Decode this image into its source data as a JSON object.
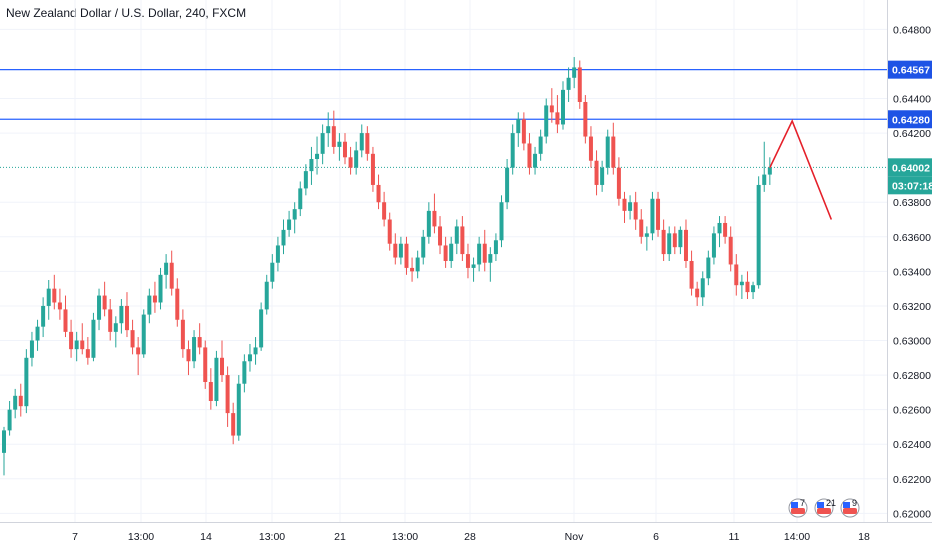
{
  "header": {
    "title": "New Zealand Dollar / U.S. Dollar, 240, FXCM"
  },
  "colors": {
    "up": "#26a69a",
    "down": "#ef5350",
    "level": "#2962ff",
    "level_tag": "#1e53e5",
    "price_tag": "#26a69a",
    "projection": "#e5202a",
    "grid": "#f0f3fa",
    "axis_text": "#131722"
  },
  "chart_data": {
    "type": "candlestick",
    "symbol": "NZDUSD",
    "ylim": [
      0.6195,
      0.6497
    ],
    "y_ticks": [
      "0.64800",
      "0.64400",
      "0.64200",
      "0.63800",
      "0.63600",
      "0.63400",
      "0.63200",
      "0.63000",
      "0.62800",
      "0.62600",
      "0.62400",
      "0.62200",
      "0.62000"
    ],
    "x_ticks": [
      "7",
      "13:00",
      "14",
      "13:00",
      "21",
      "13:00",
      "28",
      "Nov",
      "6",
      "11",
      "14:00",
      "18"
    ],
    "levels": [
      {
        "label": "0.64567",
        "value": 0.64567
      },
      {
        "label": "0.64280",
        "value": 0.6428
      }
    ],
    "current_price": {
      "label": "0.64002",
      "value": 0.64002
    },
    "countdown": "03:07:18",
    "projection": [
      {
        "bar": 0,
        "price": 0.64
      },
      {
        "bar": 4,
        "price": 0.6427
      },
      {
        "bar": 11,
        "price": 0.637
      }
    ],
    "event_icons": [
      "7",
      "21",
      "9"
    ],
    "candles": [
      [
        0.6235,
        0.625,
        0.6222,
        0.6248
      ],
      [
        0.6248,
        0.6265,
        0.6245,
        0.626
      ],
      [
        0.626,
        0.6272,
        0.6255,
        0.6268
      ],
      [
        0.6268,
        0.6275,
        0.6256,
        0.6262
      ],
      [
        0.6262,
        0.6295,
        0.6258,
        0.629
      ],
      [
        0.629,
        0.6305,
        0.6285,
        0.63
      ],
      [
        0.63,
        0.6312,
        0.6294,
        0.6308
      ],
      [
        0.6308,
        0.6325,
        0.6302,
        0.632
      ],
      [
        0.632,
        0.6335,
        0.6312,
        0.633
      ],
      [
        0.633,
        0.6338,
        0.6318,
        0.6322
      ],
      [
        0.6322,
        0.633,
        0.6312,
        0.6318
      ],
      [
        0.6318,
        0.6326,
        0.6302,
        0.6305
      ],
      [
        0.6305,
        0.6312,
        0.629,
        0.6295
      ],
      [
        0.6295,
        0.6305,
        0.6288,
        0.63
      ],
      [
        0.63,
        0.631,
        0.6292,
        0.6295
      ],
      [
        0.6295,
        0.6302,
        0.6286,
        0.629
      ],
      [
        0.629,
        0.6316,
        0.6288,
        0.6312
      ],
      [
        0.6312,
        0.633,
        0.6306,
        0.6326
      ],
      [
        0.6326,
        0.6334,
        0.6314,
        0.6318
      ],
      [
        0.6318,
        0.6324,
        0.63,
        0.6305
      ],
      [
        0.6305,
        0.6314,
        0.6296,
        0.631
      ],
      [
        0.631,
        0.6324,
        0.6304,
        0.632
      ],
      [
        0.632,
        0.6328,
        0.6302,
        0.6306
      ],
      [
        0.6306,
        0.6312,
        0.6292,
        0.6296
      ],
      [
        0.6296,
        0.6302,
        0.628,
        0.6292
      ],
      [
        0.6292,
        0.6318,
        0.629,
        0.6315
      ],
      [
        0.6315,
        0.633,
        0.631,
        0.6326
      ],
      [
        0.6326,
        0.6334,
        0.6316,
        0.6322
      ],
      [
        0.6322,
        0.6342,
        0.6318,
        0.6338
      ],
      [
        0.6338,
        0.635,
        0.633,
        0.6345
      ],
      [
        0.6345,
        0.6352,
        0.6326,
        0.633
      ],
      [
        0.633,
        0.6336,
        0.6308,
        0.6312
      ],
      [
        0.6312,
        0.6318,
        0.629,
        0.6295
      ],
      [
        0.6295,
        0.63,
        0.628,
        0.6288
      ],
      [
        0.6288,
        0.6306,
        0.6284,
        0.6302
      ],
      [
        0.6302,
        0.631,
        0.6292,
        0.6296
      ],
      [
        0.6296,
        0.63,
        0.6272,
        0.6276
      ],
      [
        0.6276,
        0.6284,
        0.626,
        0.6265
      ],
      [
        0.6265,
        0.6294,
        0.6262,
        0.629
      ],
      [
        0.629,
        0.63,
        0.6276,
        0.628
      ],
      [
        0.628,
        0.6285,
        0.625,
        0.6258
      ],
      [
        0.6258,
        0.6264,
        0.624,
        0.6245
      ],
      [
        0.6245,
        0.628,
        0.6242,
        0.6275
      ],
      [
        0.6275,
        0.6292,
        0.627,
        0.6288
      ],
      [
        0.6288,
        0.6298,
        0.6282,
        0.6292
      ],
      [
        0.6292,
        0.6302,
        0.6286,
        0.6296
      ],
      [
        0.6296,
        0.6322,
        0.6294,
        0.6318
      ],
      [
        0.6318,
        0.6338,
        0.6315,
        0.6334
      ],
      [
        0.6334,
        0.635,
        0.633,
        0.6345
      ],
      [
        0.6345,
        0.636,
        0.634,
        0.6355
      ],
      [
        0.6355,
        0.637,
        0.635,
        0.6364
      ],
      [
        0.6364,
        0.6375,
        0.636,
        0.637
      ],
      [
        0.637,
        0.638,
        0.6362,
        0.6376
      ],
      [
        0.6376,
        0.6392,
        0.6372,
        0.6388
      ],
      [
        0.6388,
        0.6402,
        0.6384,
        0.6398
      ],
      [
        0.6398,
        0.6412,
        0.639,
        0.6405
      ],
      [
        0.6405,
        0.6418,
        0.6396,
        0.6408
      ],
      [
        0.6408,
        0.6425,
        0.6402,
        0.642
      ],
      [
        0.642,
        0.6432,
        0.6412,
        0.6424
      ],
      [
        0.6424,
        0.6433,
        0.6408,
        0.6412
      ],
      [
        0.6412,
        0.642,
        0.6404,
        0.6415
      ],
      [
        0.6415,
        0.642,
        0.6402,
        0.6406
      ],
      [
        0.6406,
        0.6412,
        0.6396,
        0.64
      ],
      [
        0.64,
        0.6415,
        0.6396,
        0.641
      ],
      [
        0.641,
        0.6425,
        0.6406,
        0.642
      ],
      [
        0.642,
        0.6424,
        0.6404,
        0.6408
      ],
      [
        0.6408,
        0.6412,
        0.6386,
        0.639
      ],
      [
        0.639,
        0.6396,
        0.6376,
        0.638
      ],
      [
        0.638,
        0.6386,
        0.6366,
        0.637
      ],
      [
        0.637,
        0.6374,
        0.6352,
        0.6356
      ],
      [
        0.6356,
        0.6362,
        0.6344,
        0.6348
      ],
      [
        0.6348,
        0.636,
        0.6344,
        0.6356
      ],
      [
        0.6356,
        0.636,
        0.6338,
        0.6342
      ],
      [
        0.6342,
        0.6348,
        0.6334,
        0.634
      ],
      [
        0.634,
        0.6352,
        0.6336,
        0.6348
      ],
      [
        0.6348,
        0.6364,
        0.6344,
        0.636
      ],
      [
        0.636,
        0.638,
        0.6356,
        0.6375
      ],
      [
        0.6375,
        0.6385,
        0.6362,
        0.6366
      ],
      [
        0.6366,
        0.6372,
        0.635,
        0.6355
      ],
      [
        0.6355,
        0.636,
        0.6342,
        0.6346
      ],
      [
        0.6346,
        0.636,
        0.6342,
        0.6356
      ],
      [
        0.6356,
        0.637,
        0.635,
        0.6366
      ],
      [
        0.6366,
        0.6372,
        0.6346,
        0.635
      ],
      [
        0.635,
        0.6356,
        0.6336,
        0.6342
      ],
      [
        0.6342,
        0.6348,
        0.6334,
        0.6344
      ],
      [
        0.6344,
        0.636,
        0.634,
        0.6356
      ],
      [
        0.6356,
        0.6364,
        0.634,
        0.6345
      ],
      [
        0.6345,
        0.6354,
        0.6334,
        0.635
      ],
      [
        0.635,
        0.6362,
        0.6346,
        0.6358
      ],
      [
        0.6358,
        0.6384,
        0.6354,
        0.638
      ],
      [
        0.638,
        0.6405,
        0.6376,
        0.64
      ],
      [
        0.64,
        0.6425,
        0.6396,
        0.642
      ],
      [
        0.642,
        0.6432,
        0.6412,
        0.6428
      ],
      [
        0.6428,
        0.6432,
        0.641,
        0.6414
      ],
      [
        0.6414,
        0.642,
        0.6396,
        0.64
      ],
      [
        0.64,
        0.6412,
        0.6396,
        0.6408
      ],
      [
        0.6408,
        0.6422,
        0.6404,
        0.6418
      ],
      [
        0.6418,
        0.644,
        0.6414,
        0.6436
      ],
      [
        0.6436,
        0.6446,
        0.6426,
        0.6432
      ],
      [
        0.6432,
        0.6442,
        0.642,
        0.6425
      ],
      [
        0.6425,
        0.645,
        0.6422,
        0.6445
      ],
      [
        0.6445,
        0.6458,
        0.6438,
        0.6452
      ],
      [
        0.6452,
        0.6464,
        0.6446,
        0.6458
      ],
      [
        0.6458,
        0.6462,
        0.6434,
        0.6438
      ],
      [
        0.6438,
        0.6442,
        0.6414,
        0.6418
      ],
      [
        0.6418,
        0.6424,
        0.64,
        0.6404
      ],
      [
        0.6404,
        0.641,
        0.6384,
        0.639
      ],
      [
        0.639,
        0.6404,
        0.6386,
        0.64
      ],
      [
        0.64,
        0.6422,
        0.6396,
        0.6418
      ],
      [
        0.6418,
        0.6426,
        0.6396,
        0.64
      ],
      [
        0.64,
        0.6406,
        0.6378,
        0.6382
      ],
      [
        0.6382,
        0.6386,
        0.6368,
        0.6375
      ],
      [
        0.6375,
        0.6384,
        0.637,
        0.638
      ],
      [
        0.638,
        0.6386,
        0.6364,
        0.637
      ],
      [
        0.637,
        0.6376,
        0.6356,
        0.636
      ],
      [
        0.636,
        0.6366,
        0.6352,
        0.6362
      ],
      [
        0.6362,
        0.6386,
        0.6358,
        0.6382
      ],
      [
        0.6382,
        0.6386,
        0.636,
        0.6364
      ],
      [
        0.6364,
        0.637,
        0.6346,
        0.635
      ],
      [
        0.635,
        0.6366,
        0.6346,
        0.6362
      ],
      [
        0.6362,
        0.6366,
        0.635,
        0.6354
      ],
      [
        0.6354,
        0.6366,
        0.635,
        0.6364
      ],
      [
        0.6364,
        0.637,
        0.6342,
        0.6346
      ],
      [
        0.6346,
        0.6352,
        0.6326,
        0.633
      ],
      [
        0.633,
        0.6334,
        0.632,
        0.6325
      ],
      [
        0.6325,
        0.634,
        0.632,
        0.6336
      ],
      [
        0.6336,
        0.6352,
        0.6332,
        0.6348
      ],
      [
        0.6348,
        0.6366,
        0.6344,
        0.6362
      ],
      [
        0.6362,
        0.6372,
        0.6354,
        0.6368
      ],
      [
        0.6368,
        0.6372,
        0.6356,
        0.636
      ],
      [
        0.636,
        0.6366,
        0.634,
        0.6344
      ],
      [
        0.6344,
        0.635,
        0.6326,
        0.6332
      ],
      [
        0.6332,
        0.6338,
        0.6324,
        0.6334
      ],
      [
        0.6334,
        0.634,
        0.6324,
        0.6328
      ],
      [
        0.6328,
        0.6334,
        0.6324,
        0.6332
      ],
      [
        0.6332,
        0.6395,
        0.633,
        0.639
      ],
      [
        0.639,
        0.6415,
        0.6386,
        0.6396
      ],
      [
        0.6396,
        0.6406,
        0.639,
        0.64
      ]
    ]
  }
}
